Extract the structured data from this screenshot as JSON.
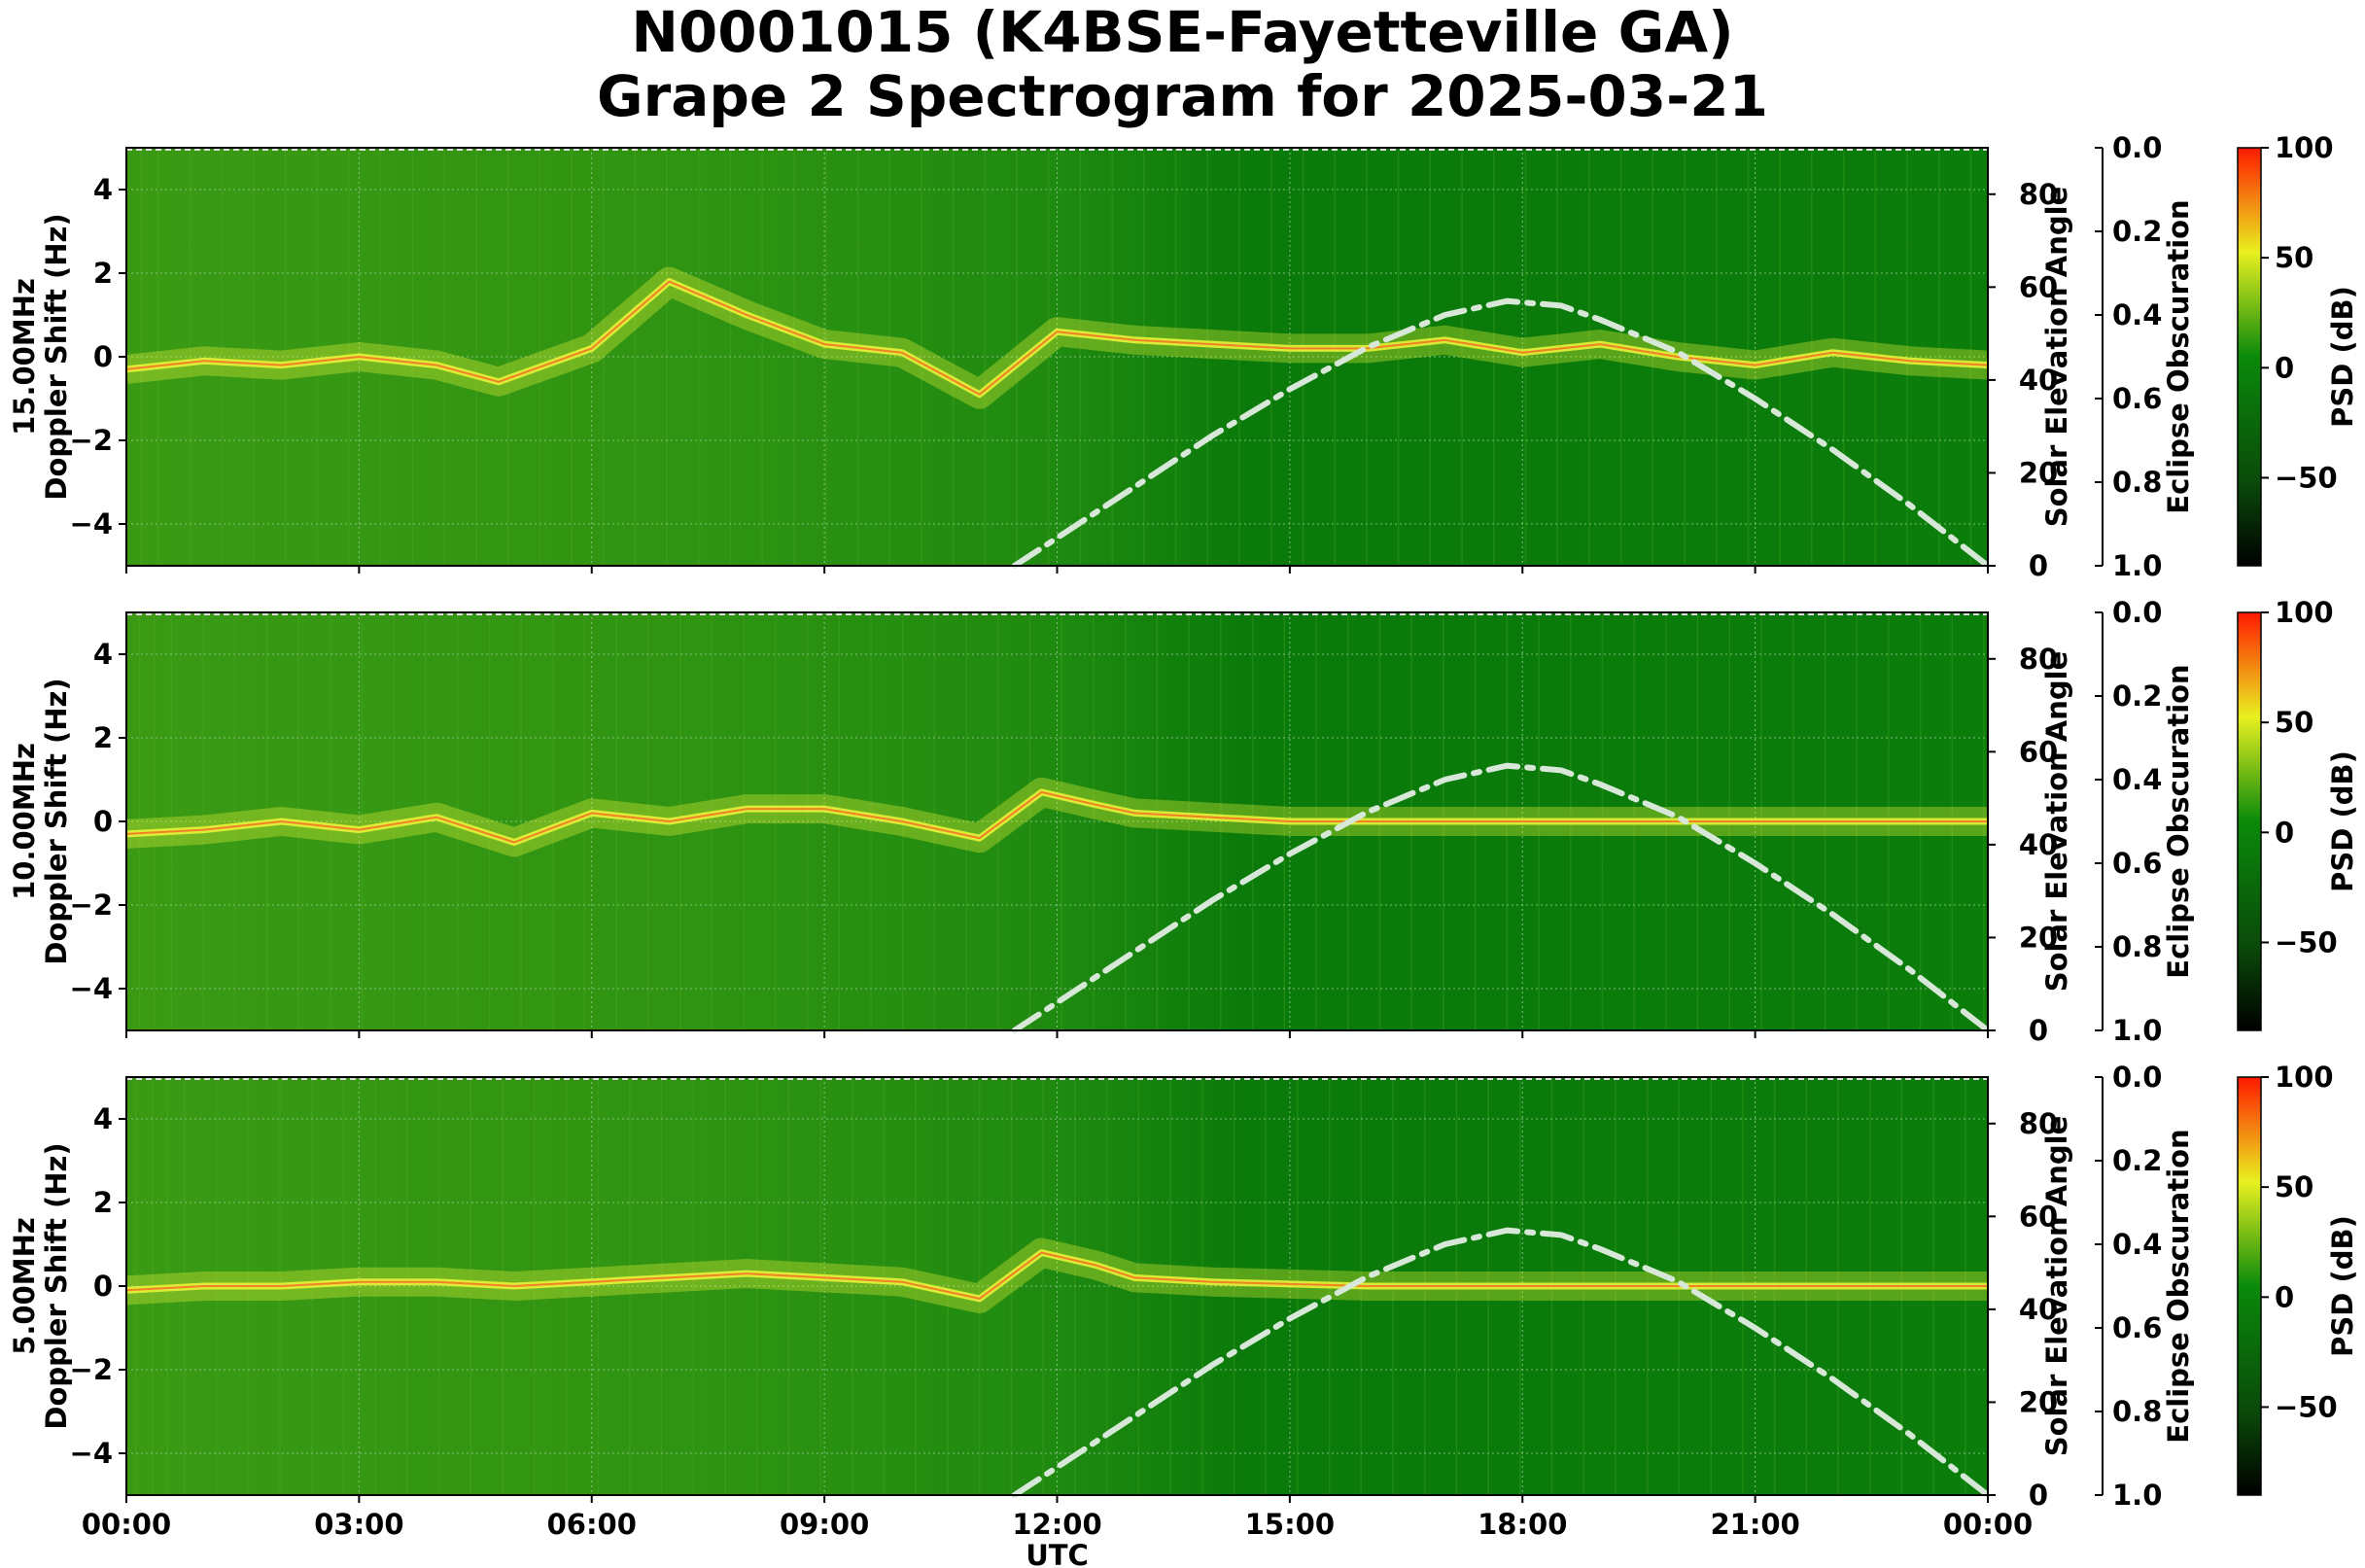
{
  "title_line1": "N0001015 (K4BSE-Fayetteville GA)",
  "title_line2": "Grape 2 Spectrogram for 2025-03-21",
  "colors": {
    "background_green": "#0a7a0a",
    "trace_yellow": "#e8f23a",
    "trace_red": "#ff3a1a",
    "solar_curve": "#d8e8d8",
    "grid": "#9acd9a"
  },
  "chart_data": [
    {
      "type": "heatmap",
      "panel": "15.00MHz",
      "ylabel": "15.00MHz\nDoppler Shift (Hz)",
      "xlabel": "",
      "ylim": [
        -5,
        5
      ],
      "yticks": [
        "4",
        "2",
        "0",
        "−2",
        "−4"
      ],
      "right_axis_label": "Solar Elevation Angle",
      "right_axis_ticks": [
        "80",
        "60",
        "40",
        "20",
        "0"
      ],
      "eclipse_label": "Eclipse Obscuration",
      "eclipse_ticks": [
        "0.0",
        "0.2",
        "0.4",
        "0.6",
        "0.8",
        "1.0"
      ],
      "colorbar_label": "PSD (dB)",
      "colorbar_ticks": [
        "100",
        "50",
        "0",
        "−50"
      ],
      "solar_elevation": {
        "x_hours": [
          11.45,
          12,
          13,
          14,
          15,
          16,
          17,
          17.8,
          18.5,
          19,
          20,
          21,
          22,
          23,
          24
        ],
        "y_degrees": [
          0,
          6,
          17,
          28,
          38,
          47,
          54,
          57,
          56,
          53,
          46,
          36,
          25,
          13,
          0
        ]
      },
      "doppler_trace": {
        "x_hours": [
          0,
          1,
          2,
          3,
          4,
          4.8,
          6,
          7,
          8,
          9,
          10,
          11,
          12,
          13,
          14,
          15,
          16,
          17,
          18,
          19,
          20,
          21,
          22,
          23,
          24
        ],
        "y_hz": [
          -0.3,
          -0.1,
          -0.2,
          0.0,
          -0.2,
          -0.6,
          0.2,
          1.8,
          1.0,
          0.3,
          0.1,
          -0.9,
          0.6,
          0.4,
          0.3,
          0.2,
          0.2,
          0.4,
          0.1,
          0.3,
          0.0,
          -0.2,
          0.1,
          -0.1,
          -0.2
        ]
      }
    },
    {
      "type": "heatmap",
      "panel": "10.00MHz",
      "ylabel": "10.00MHz\nDoppler Shift (Hz)",
      "xlabel": "",
      "ylim": [
        -5,
        5
      ],
      "yticks": [
        "4",
        "2",
        "0",
        "−2",
        "−4"
      ],
      "right_axis_label": "Solar Elevation Angle",
      "right_axis_ticks": [
        "80",
        "60",
        "40",
        "20",
        "0"
      ],
      "eclipse_label": "Eclipse Obscuration",
      "eclipse_ticks": [
        "0.0",
        "0.2",
        "0.4",
        "0.6",
        "0.8",
        "1.0"
      ],
      "colorbar_label": "PSD (dB)",
      "colorbar_ticks": [
        "100",
        "50",
        "0",
        "−50"
      ],
      "solar_elevation": {
        "x_hours": [
          11.45,
          12,
          13,
          14,
          15,
          16,
          17,
          17.8,
          18.5,
          19,
          20,
          21,
          22,
          23,
          24
        ],
        "y_degrees": [
          0,
          6,
          17,
          28,
          38,
          47,
          54,
          57,
          56,
          53,
          46,
          36,
          25,
          13,
          0
        ]
      },
      "doppler_trace": {
        "x_hours": [
          0,
          1,
          2,
          3,
          4,
          5,
          6,
          7,
          8,
          9,
          10,
          11,
          11.8,
          12.5,
          13,
          14,
          15,
          16,
          17,
          18,
          19,
          20,
          21,
          22,
          23,
          24
        ],
        "y_hz": [
          -0.3,
          -0.2,
          0.0,
          -0.2,
          0.1,
          -0.5,
          0.2,
          0.0,
          0.3,
          0.3,
          0.0,
          -0.4,
          0.7,
          0.4,
          0.2,
          0.1,
          0.0,
          0.0,
          0.0,
          0.0,
          0.0,
          0.0,
          0.0,
          0.0,
          0.0,
          0.0
        ]
      }
    },
    {
      "type": "heatmap",
      "panel": "5.00MHz",
      "ylabel": "5.00MHz\nDoppler Shift (Hz)",
      "xlabel": "UTC",
      "ylim": [
        -5,
        5
      ],
      "yticks": [
        "4",
        "2",
        "0",
        "−2",
        "−4"
      ],
      "xticks": [
        "00:00",
        "03:00",
        "06:00",
        "09:00",
        "12:00",
        "15:00",
        "18:00",
        "21:00",
        "00:00"
      ],
      "right_axis_label": "Solar Elevation Angle",
      "right_axis_ticks": [
        "80",
        "60",
        "40",
        "20",
        "0"
      ],
      "eclipse_label": "Eclipse Obscuration",
      "eclipse_ticks": [
        "0.0",
        "0.2",
        "0.4",
        "0.6",
        "0.8",
        "1.0"
      ],
      "colorbar_label": "PSD (dB)",
      "colorbar_ticks": [
        "100",
        "50",
        "0",
        "−50"
      ],
      "solar_elevation": {
        "x_hours": [
          11.45,
          12,
          13,
          14,
          15,
          16,
          17,
          17.8,
          18.5,
          19,
          20,
          21,
          22,
          23,
          24
        ],
        "y_degrees": [
          0,
          6,
          17,
          28,
          38,
          47,
          54,
          57,
          56,
          53,
          46,
          36,
          25,
          13,
          0
        ]
      },
      "doppler_trace": {
        "x_hours": [
          0,
          1,
          2,
          3,
          4,
          5,
          6,
          7,
          8,
          9,
          10,
          11,
          11.8,
          12.5,
          13,
          14,
          16,
          18,
          20,
          22,
          24
        ],
        "y_hz": [
          -0.1,
          0.0,
          0.0,
          0.1,
          0.1,
          0.0,
          0.1,
          0.2,
          0.3,
          0.2,
          0.1,
          -0.3,
          0.8,
          0.5,
          0.2,
          0.1,
          0.0,
          0.0,
          0.0,
          0.0,
          0.0
        ]
      }
    }
  ]
}
